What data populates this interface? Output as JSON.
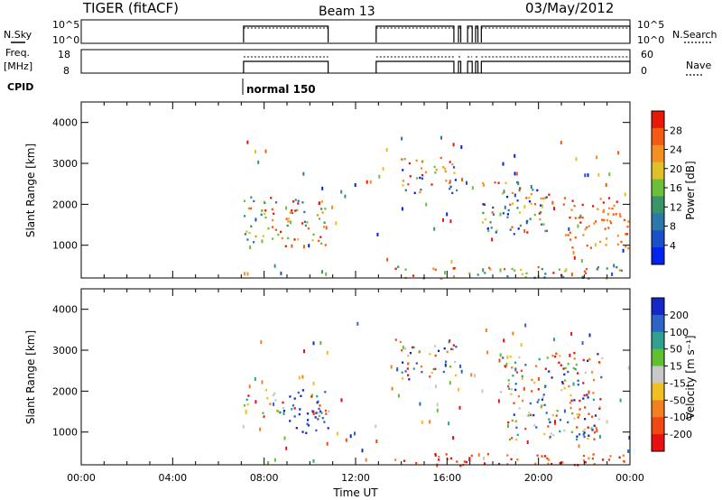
{
  "header": {
    "title": "TIGER (fitACF)",
    "beam": "Beam 13",
    "date": "03/May/2012"
  },
  "side_labels": {
    "nsky": "N.Sky",
    "freq_line1": "Freq.",
    "freq_line2": "[MHz]",
    "cpid": "CPID",
    "nsearch": "N.Search",
    "nave": "Nave"
  },
  "noise_panel": {
    "yticks_left": [
      "10^5",
      "10^0"
    ],
    "yticks_right": [
      "10^5",
      "10^0"
    ]
  },
  "freq_panel": {
    "yticks_left": [
      "18",
      "8"
    ],
    "yticks_right": [
      "60",
      "0"
    ]
  },
  "cpid_text": "normal 150",
  "colors": {
    "power_scale": [
      "#0022ee",
      "#1a50c8",
      "#2c78a8",
      "#3a9468",
      "#6cbf3a",
      "#e0c028",
      "#f49020",
      "#f45a10",
      "#e81808"
    ],
    "velocity_scale": [
      "#1428c8",
      "#2c64c8",
      "#30a090",
      "#60c030",
      "#c8c8c8",
      "#f0c020",
      "#f08020",
      "#f04810",
      "#e81010"
    ],
    "grey_marker": "#000000"
  },
  "chart_data": [
    {
      "type": "heatmap",
      "name": "power-panel",
      "ylabel": "Slant Range [km]",
      "yticks": [
        "1000",
        "2000",
        "3000",
        "4000"
      ],
      "ylim": [
        200,
        4500
      ],
      "colorbar_label": "Power [dB]",
      "colorbar_ticks": [
        "4",
        "8",
        "12",
        "16",
        "20",
        "24",
        "28"
      ],
      "colorbar_range": [
        0,
        32
      ],
      "x_ticks": [
        "00:00",
        "04:00",
        "08:00",
        "12:00",
        "16:00",
        "20:00",
        "00:00"
      ],
      "xlim_hours": [
        0,
        24
      ],
      "regions": [
        {
          "t0": 7.1,
          "t1": 10.8,
          "r0": 1000,
          "r1": 2200,
          "level": "mixed-high"
        },
        {
          "t0": 13.7,
          "t1": 16.4,
          "r0": 2300,
          "r1": 3200,
          "level": "mixed"
        },
        {
          "t0": 13.7,
          "t1": 23.9,
          "r0": 200,
          "r1": 500,
          "level": "mixed-high"
        },
        {
          "t0": 21.0,
          "t1": 23.9,
          "r0": 900,
          "r1": 2200,
          "level": "high"
        },
        {
          "t0": 17.5,
          "t1": 20.5,
          "r0": 1300,
          "r1": 2600,
          "level": "mixed"
        }
      ]
    },
    {
      "type": "heatmap",
      "name": "velocity-panel",
      "ylabel": "Slant Range [km]",
      "yticks": [
        "1000",
        "2000",
        "3000",
        "4000"
      ],
      "ylim": [
        200,
        4500
      ],
      "colorbar_label": "Velocity [m s⁻¹]",
      "colorbar_ticks": [
        "200",
        "100",
        "50",
        "15",
        "-15",
        "-50",
        "-100",
        "-200"
      ],
      "colorbar_range": [
        -250,
        250
      ],
      "x_ticks": [
        "00:00",
        "04:00",
        "08:00",
        "12:00",
        "16:00",
        "20:00",
        "00:00"
      ],
      "xlim_hours": [
        0,
        24
      ],
      "xlabel": "Time UT",
      "regions": [
        {
          "t0": 8.5,
          "t1": 10.8,
          "r0": 1000,
          "r1": 1600,
          "level": "positive"
        },
        {
          "t0": 7.1,
          "t1": 10.8,
          "r0": 1400,
          "r1": 2100,
          "level": "mixed"
        },
        {
          "t0": 13.7,
          "t1": 16.4,
          "r0": 2300,
          "r1": 3300,
          "level": "mixed"
        },
        {
          "t0": 13.7,
          "t1": 23.9,
          "r0": 200,
          "r1": 500,
          "level": "negative"
        },
        {
          "t0": 18.3,
          "t1": 22.8,
          "r0": 800,
          "r1": 3000,
          "level": "mixed"
        }
      ]
    }
  ]
}
